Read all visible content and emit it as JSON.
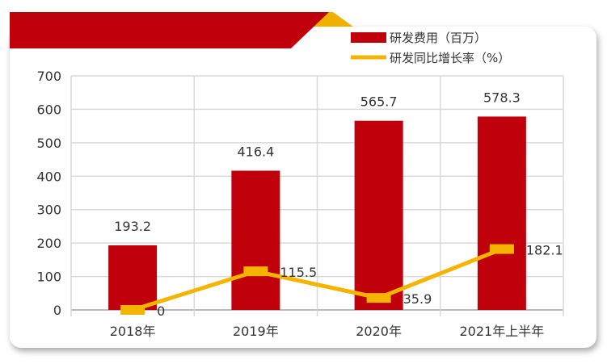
{
  "chart_data": {
    "type": "bar+line",
    "categories": [
      "2018年",
      "2019年",
      "2020年",
      "2021年上半年"
    ],
    "series": [
      {
        "name": "研发费用（百万）",
        "type": "bar",
        "values": [
          193.2,
          416.4,
          565.7,
          578.3
        ],
        "color": "#c0000b"
      },
      {
        "name": "研发同比增长率（%）",
        "type": "line",
        "values": [
          0,
          115.5,
          35.9,
          182.1
        ],
        "color": "#f5b400"
      }
    ],
    "yticks": [
      "0",
      "100",
      "200",
      "300",
      "400",
      "500",
      "600",
      "700"
    ],
    "ylim": [
      0,
      700
    ],
    "grid": true,
    "legend_position": "top-right"
  },
  "colors": {
    "banner": "#c0000b",
    "accent": "#f5b400"
  }
}
